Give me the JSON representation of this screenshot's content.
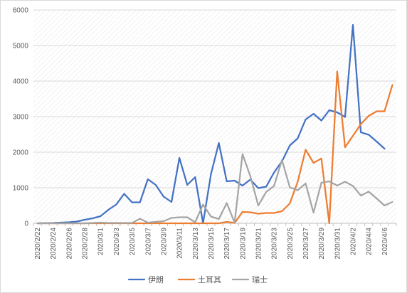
{
  "chart_data": {
    "type": "line",
    "x": [
      "2020/2/22",
      "2020/2/23",
      "2020/2/24",
      "2020/2/25",
      "2020/2/26",
      "2020/2/27",
      "2020/2/28",
      "2020/2/29",
      "2020/3/1",
      "2020/3/2",
      "2020/3/3",
      "2020/3/4",
      "2020/3/5",
      "2020/3/6",
      "2020/3/7",
      "2020/3/8",
      "2020/3/9",
      "2020/3/10",
      "2020/3/11",
      "2020/3/12",
      "2020/3/13",
      "2020/3/14",
      "2020/3/15",
      "2020/3/16",
      "2020/3/17",
      "2020/3/18",
      "2020/3/19",
      "2020/3/20",
      "2020/3/21",
      "2020/3/22",
      "2020/3/23",
      "2020/3/24",
      "2020/3/25",
      "2020/3/26",
      "2020/3/27",
      "2020/3/28",
      "2020/3/29",
      "2020/3/30",
      "2020/3/31",
      "2020/4/1",
      "2020/4/2",
      "2020/4/3",
      "2020/4/4",
      "2020/4/5",
      "2020/4/6",
      "2020/4/7"
    ],
    "x_tick_labels": [
      "2020/2/22",
      "2020/2/24",
      "2020/2/26",
      "2020/2/28",
      "2020/3/1",
      "2020/3/3",
      "2020/3/5",
      "2020/3/7",
      "2020/3/9",
      "2020/3/11",
      "2020/3/13",
      "2020/3/15",
      "2020/3/17",
      "2020/3/19",
      "2020/3/21",
      "2020/3/23",
      "2020/3/25",
      "2020/3/27",
      "2020/3/29",
      "2020/3/31",
      "2020/4/2",
      "2020/4/4",
      "2020/4/6"
    ],
    "series": [
      {
        "name": "伊朗",
        "color": "#4472C4",
        "values": [
          0,
          5,
          10,
          20,
          30,
          50,
          100,
          140,
          200,
          380,
          530,
          830,
          590,
          590,
          1240,
          1080,
          750,
          600,
          1840,
          1080,
          1300,
          0,
          1380,
          2260,
          1180,
          1200,
          1060,
          1230,
          990,
          1030,
          1430,
          1740,
          2190,
          2390,
          2920,
          3080,
          2890,
          3180,
          3120,
          2990,
          5580,
          2560,
          2490,
          2300,
          2100,
          null
        ]
      },
      {
        "name": "土耳其",
        "color": "#ED7D31",
        "values": [
          0,
          0,
          0,
          0,
          0,
          0,
          0,
          0,
          0,
          0,
          0,
          0,
          0,
          0,
          0,
          0,
          0,
          0,
          0,
          0,
          0,
          0,
          0,
          0,
          40,
          10,
          320,
          310,
          270,
          290,
          290,
          340,
          560,
          1170,
          2070,
          1700,
          1820,
          0,
          4270,
          2140,
          2460,
          2790,
          3020,
          3150,
          3150,
          3890
        ]
      },
      {
        "name": "瑞士",
        "color": "#A5A5A5",
        "values": [
          0,
          0,
          0,
          0,
          0,
          0,
          0,
          10,
          20,
          10,
          10,
          10,
          10,
          130,
          20,
          40,
          60,
          150,
          170,
          170,
          30,
          530,
          190,
          120,
          570,
          20,
          1950,
          1320,
          500,
          880,
          1050,
          1780,
          1010,
          930,
          1120,
          300,
          1140,
          1180,
          1060,
          1170,
          1050,
          780,
          890,
          700,
          500,
          600
        ]
      }
    ],
    "title": "",
    "xlabel": "",
    "ylabel": "",
    "ylim": [
      0,
      6000
    ],
    "y_ticks": [
      0,
      1000,
      2000,
      3000,
      4000,
      5000,
      6000
    ],
    "grid": "horizontal",
    "legend": "bottom-center"
  }
}
